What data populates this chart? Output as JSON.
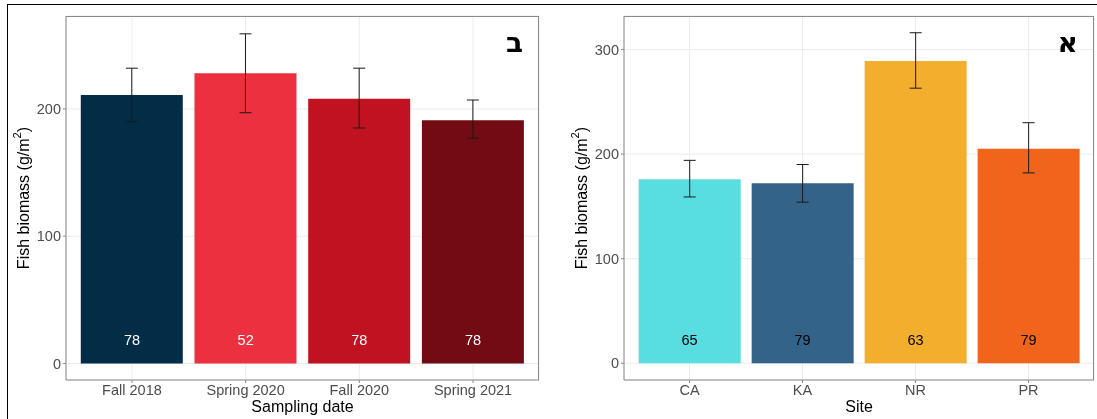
{
  "chart_data": [
    {
      "type": "bar",
      "categories": [
        "Fall 2018",
        "Spring 2020",
        "Fall 2020",
        "Spring 2021"
      ],
      "values": [
        211,
        228,
        208,
        191
      ],
      "colors": [
        "#032c47",
        "#ec303f",
        "#c01220",
        "#720b14"
      ],
      "errors": [
        [
          190,
          232
        ],
        [
          197,
          259
        ],
        [
          185,
          232
        ],
        [
          177,
          207
        ]
      ],
      "xlabel": "Sampling date",
      "ylabel": "Fish biomass (g/m$^{2}$)",
      "ylim": [
        -13,
        273
      ],
      "yticks": [
        0,
        100,
        200
      ],
      "grid": true,
      "annotations": [
        "ב",
        "78",
        "52",
        "78",
        "78"
      ]
    },
    {
      "type": "bar",
      "categories": [
        "CA",
        "KA",
        "NR",
        "PR"
      ],
      "values": [
        176,
        172,
        289,
        205
      ],
      "colors": [
        "#58dde0",
        "#336389",
        "#f4ae2e",
        "#f0641c"
      ],
      "errors": [
        [
          159,
          194
        ],
        [
          154,
          190
        ],
        [
          263,
          316
        ],
        [
          182,
          230
        ]
      ],
      "xlabel": "Site",
      "ylabel": "Fish biomass (g/m$^{2}$)",
      "ylim": [
        -16,
        332
      ],
      "yticks": [
        0,
        100,
        200,
        300
      ],
      "grid": true,
      "annotations": [
        "א",
        "65",
        "79",
        "63",
        "79"
      ]
    }
  ]
}
